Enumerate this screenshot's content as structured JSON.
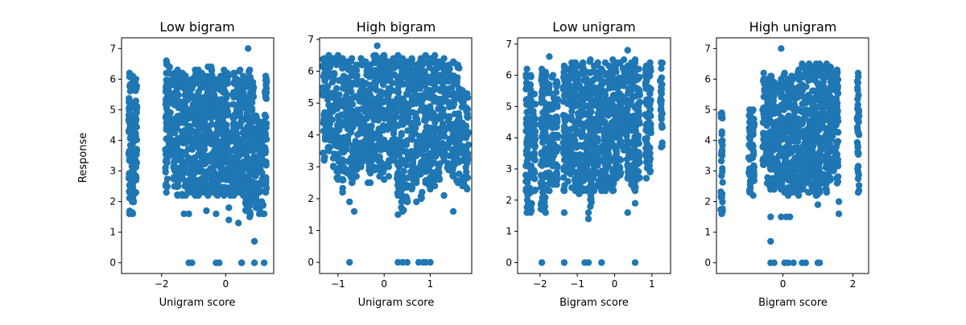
{
  "figure": {
    "ylabel": "Response"
  },
  "style": {
    "marker_color": "#1f77b4"
  },
  "chart_data": [
    {
      "type": "scatter",
      "title": "Low bigram",
      "xlabel": "Unigram score",
      "ylabel": "Response",
      "xlim": [
        -3.25,
        1.5
      ],
      "ylim": [
        -0.35,
        7.35
      ],
      "xticks": [
        -2,
        0
      ],
      "yticks": [
        0,
        1,
        2,
        3,
        4,
        5,
        6,
        7
      ],
      "grid": false,
      "columns": [
        [
          -3.0,
          1.6,
          6.2
        ],
        [
          -2.9,
          1.6,
          6.1
        ],
        [
          -2.8,
          2.7,
          6.0
        ],
        [
          -1.85,
          2.3,
          6.6
        ],
        [
          -1.75,
          3.5,
          6.4
        ],
        [
          -1.6,
          2.5,
          6.2
        ],
        [
          -1.5,
          2.2,
          6.3
        ],
        [
          -1.35,
          2.2,
          6.2
        ],
        [
          -1.25,
          2.2,
          6.1
        ],
        [
          -1.15,
          2.3,
          5.9
        ],
        [
          -1.05,
          2.3,
          6.0
        ],
        [
          -0.95,
          2.2,
          6.3
        ],
        [
          -0.85,
          2.2,
          6.3
        ],
        [
          -0.75,
          2.3,
          6.2
        ],
        [
          -0.65,
          2.3,
          6.1
        ],
        [
          -0.55,
          2.2,
          6.4
        ],
        [
          -0.45,
          2.3,
          6.4
        ],
        [
          -0.35,
          2.3,
          6.0
        ],
        [
          -0.25,
          2.2,
          5.9
        ],
        [
          -0.15,
          2.3,
          6.1
        ],
        [
          -0.05,
          2.2,
          6.3
        ],
        [
          0.05,
          2.3,
          6.2
        ],
        [
          0.15,
          2.2,
          4.2
        ],
        [
          0.25,
          2.2,
          6.2
        ],
        [
          0.35,
          2.3,
          6.0
        ],
        [
          0.45,
          2.3,
          6.3
        ],
        [
          0.55,
          2.2,
          6.1
        ],
        [
          0.65,
          1.7,
          6.0
        ],
        [
          0.75,
          1.5,
          6.3
        ],
        [
          0.85,
          2.0,
          5.9
        ],
        [
          0.95,
          1.8,
          4.8
        ],
        [
          1.05,
          1.6,
          4.5
        ],
        [
          1.15,
          1.6,
          4.6
        ],
        [
          1.25,
          2.3,
          6.1
        ]
      ],
      "outliers": [
        [
          -3.0,
          2.3
        ],
        [
          -2.8,
          2.3
        ],
        [
          -1.3,
          1.6
        ],
        [
          -1.15,
          0.0
        ],
        [
          -1.05,
          0.0
        ],
        [
          -1.15,
          1.6
        ],
        [
          -0.6,
          1.7
        ],
        [
          -0.3,
          0.0
        ],
        [
          -0.2,
          0.0
        ],
        [
          -0.3,
          1.6
        ],
        [
          0.1,
          1.4
        ],
        [
          0.1,
          1.8
        ],
        [
          0.4,
          1.3
        ],
        [
          0.5,
          0.0
        ],
        [
          0.5,
          0.0
        ],
        [
          0.9,
          0.7
        ],
        [
          0.9,
          0.0
        ],
        [
          1.2,
          0.0
        ],
        [
          1.2,
          1.6
        ],
        [
          0.7,
          7.0
        ],
        [
          -0.8,
          5.4
        ],
        [
          -0.1,
          5.3
        ]
      ]
    },
    {
      "type": "scatter",
      "title": "High bigram",
      "xlabel": "Unigram score",
      "ylabel": "",
      "xlim": [
        -1.4,
        1.9
      ],
      "ylim": [
        -0.35,
        7.05
      ],
      "xticks": [
        -1,
        0,
        1
      ],
      "yticks": [
        0,
        1,
        2,
        3,
        4,
        5,
        6,
        7
      ],
      "grid": false,
      "columns": [
        [
          -1.3,
          3.2,
          6.4
        ],
        [
          -1.2,
          3.5,
          6.5
        ],
        [
          -1.1,
          3.0,
          6.4
        ],
        [
          -1.0,
          2.6,
          6.5
        ],
        [
          -0.9,
          2.2,
          6.4
        ],
        [
          -0.8,
          2.8,
          6.3
        ],
        [
          -0.7,
          2.5,
          6.4
        ],
        [
          -0.6,
          2.7,
          6.2
        ],
        [
          -0.5,
          3.0,
          6.4
        ],
        [
          -0.4,
          3.2,
          6.3
        ],
        [
          -0.3,
          2.5,
          6.2
        ],
        [
          -0.2,
          2.9,
          6.5
        ],
        [
          -0.1,
          2.7,
          6.4
        ],
        [
          0.0,
          2.6,
          6.5
        ],
        [
          0.1,
          3.0,
          6.3
        ],
        [
          0.2,
          3.2,
          6.4
        ],
        [
          0.3,
          2.1,
          6.5
        ],
        [
          0.4,
          1.6,
          6.4
        ],
        [
          0.5,
          1.9,
          6.3
        ],
        [
          0.6,
          2.3,
          6.4
        ],
        [
          0.7,
          2.5,
          6.2
        ],
        [
          0.8,
          2.0,
          6.4
        ],
        [
          0.9,
          2.5,
          6.5
        ],
        [
          1.0,
          2.3,
          6.4
        ],
        [
          1.1,
          2.4,
          6.5
        ],
        [
          1.2,
          2.6,
          6.3
        ],
        [
          1.3,
          3.2,
          6.4
        ],
        [
          1.4,
          2.9,
          6.2
        ],
        [
          1.5,
          2.7,
          6.3
        ],
        [
          1.6,
          2.5,
          6.2
        ],
        [
          1.7,
          2.4,
          5.4
        ],
        [
          1.8,
          2.3,
          5.3
        ]
      ],
      "outliers": [
        [
          -0.75,
          0.0
        ],
        [
          -0.75,
          1.9
        ],
        [
          -0.65,
          1.6
        ],
        [
          -0.9,
          2.2
        ],
        [
          -0.35,
          2.5
        ],
        [
          -0.15,
          6.8
        ],
        [
          0.3,
          0.0
        ],
        [
          0.4,
          0.0
        ],
        [
          0.5,
          0.0
        ],
        [
          0.75,
          0.0
        ],
        [
          0.85,
          0.0
        ],
        [
          0.9,
          0.0
        ],
        [
          1.0,
          0.0
        ],
        [
          0.3,
          1.5
        ],
        [
          0.7,
          1.9
        ],
        [
          1.5,
          1.6
        ],
        [
          1.3,
          2.1
        ],
        [
          0.1,
          2.7
        ]
      ]
    },
    {
      "type": "scatter",
      "title": "Low unigram",
      "xlabel": "Bigram score",
      "ylabel": "",
      "xlim": [
        -2.6,
        1.5
      ],
      "ylim": [
        -0.35,
        7.2
      ],
      "xticks": [
        -2,
        -1,
        0,
        1
      ],
      "yticks": [
        0,
        1,
        2,
        3,
        4,
        5,
        6,
        7
      ],
      "grid": false,
      "columns": [
        [
          -2.35,
          1.6,
          6.2
        ],
        [
          -2.25,
          1.6,
          6.0
        ],
        [
          -2.15,
          2.3,
          5.4
        ],
        [
          -1.95,
          1.7,
          6.2
        ],
        [
          -1.85,
          1.6,
          6.1
        ],
        [
          -1.75,
          2.3,
          5.7
        ],
        [
          -1.65,
          2.5,
          6.0
        ],
        [
          -1.55,
          2.5,
          5.8
        ],
        [
          -1.35,
          2.3,
          6.3
        ],
        [
          -1.25,
          2.6,
          6.2
        ],
        [
          -1.15,
          2.4,
          6.4
        ],
        [
          -1.05,
          2.3,
          6.4
        ],
        [
          -0.95,
          2.2,
          6.3
        ],
        [
          -0.85,
          2.3,
          6.4
        ],
        [
          -0.75,
          2.3,
          6.1
        ],
        [
          -0.65,
          1.8,
          6.5
        ],
        [
          -0.55,
          2.3,
          6.3
        ],
        [
          -0.45,
          2.5,
          6.4
        ],
        [
          -0.35,
          2.3,
          6.2
        ],
        [
          -0.25,
          2.3,
          6.4
        ],
        [
          -0.15,
          2.4,
          6.3
        ],
        [
          -0.05,
          2.3,
          6.5
        ],
        [
          0.05,
          2.7,
          6.4
        ],
        [
          0.15,
          2.8,
          6.4
        ],
        [
          0.25,
          3.6,
          6.5
        ],
        [
          0.35,
          2.7,
          6.3
        ],
        [
          0.45,
          2.5,
          6.4
        ],
        [
          0.55,
          2.3,
          6.5
        ],
        [
          0.65,
          2.7,
          6.2
        ],
        [
          0.85,
          2.7,
          6.3
        ],
        [
          0.95,
          2.9,
          6.4
        ],
        [
          1.25,
          3.7,
          6.4
        ]
      ],
      "outliers": [
        [
          -1.95,
          0.0
        ],
        [
          -1.35,
          0.0
        ],
        [
          -0.8,
          0.0
        ],
        [
          -0.7,
          0.0
        ],
        [
          -0.35,
          0.0
        ],
        [
          0.55,
          0.0
        ],
        [
          -1.35,
          1.6
        ],
        [
          -0.7,
          1.4
        ],
        [
          -0.7,
          1.6
        ],
        [
          0.35,
          1.6
        ],
        [
          0.55,
          1.9
        ],
        [
          0.35,
          6.8
        ],
        [
          -1.75,
          6.6
        ]
      ]
    },
    {
      "type": "scatter",
      "title": "High unigram",
      "xlabel": "Bigram score",
      "ylabel": "",
      "xlim": [
        -1.9,
        2.45
      ],
      "ylim": [
        -0.35,
        7.35
      ],
      "xticks": [
        0,
        2
      ],
      "yticks": [
        0,
        1,
        2,
        3,
        4,
        5,
        6,
        7
      ],
      "grid": false,
      "columns": [
        [
          -1.75,
          1.6,
          4.9
        ],
        [
          -0.95,
          2.3,
          5.0
        ],
        [
          -0.85,
          2.2,
          5.0
        ],
        [
          -0.55,
          3.2,
          6.0
        ],
        [
          -0.45,
          2.6,
          6.0
        ],
        [
          -0.35,
          2.4,
          6.1
        ],
        [
          -0.25,
          2.4,
          5.9
        ],
        [
          -0.15,
          2.5,
          5.8
        ],
        [
          -0.05,
          2.4,
          6.0
        ],
        [
          0.05,
          2.3,
          6.2
        ],
        [
          0.15,
          2.2,
          6.0
        ],
        [
          0.25,
          2.3,
          6.1
        ],
        [
          0.35,
          2.3,
          5.7
        ],
        [
          0.45,
          2.2,
          6.3
        ],
        [
          0.55,
          2.4,
          6.5
        ],
        [
          0.65,
          2.6,
          6.4
        ],
        [
          0.75,
          2.3,
          6.5
        ],
        [
          0.85,
          2.4,
          6.4
        ],
        [
          0.95,
          2.2,
          6.5
        ],
        [
          1.05,
          2.3,
          6.5
        ],
        [
          1.15,
          2.6,
          6.4
        ],
        [
          1.25,
          2.3,
          6.5
        ],
        [
          1.35,
          2.7,
          6.4
        ],
        [
          1.45,
          3.0,
          6.2
        ],
        [
          1.55,
          2.6,
          6.3
        ],
        [
          2.15,
          2.3,
          6.2
        ]
      ],
      "outliers": [
        [
          -0.35,
          0.0
        ],
        [
          -0.25,
          0.0
        ],
        [
          0.05,
          0.0
        ],
        [
          0.15,
          0.0
        ],
        [
          0.3,
          0.0
        ],
        [
          0.55,
          0.0
        ],
        [
          0.65,
          0.0
        ],
        [
          1.0,
          0.0
        ],
        [
          1.05,
          0.0
        ],
        [
          -0.35,
          0.7
        ],
        [
          -0.35,
          1.5
        ],
        [
          -0.05,
          1.5
        ],
        [
          0.1,
          1.5
        ],
        [
          0.2,
          1.5
        ],
        [
          1.0,
          1.9
        ],
        [
          1.6,
          1.6
        ],
        [
          1.6,
          2.0
        ],
        [
          -0.05,
          7.0
        ],
        [
          -0.55,
          6.2
        ]
      ]
    }
  ]
}
